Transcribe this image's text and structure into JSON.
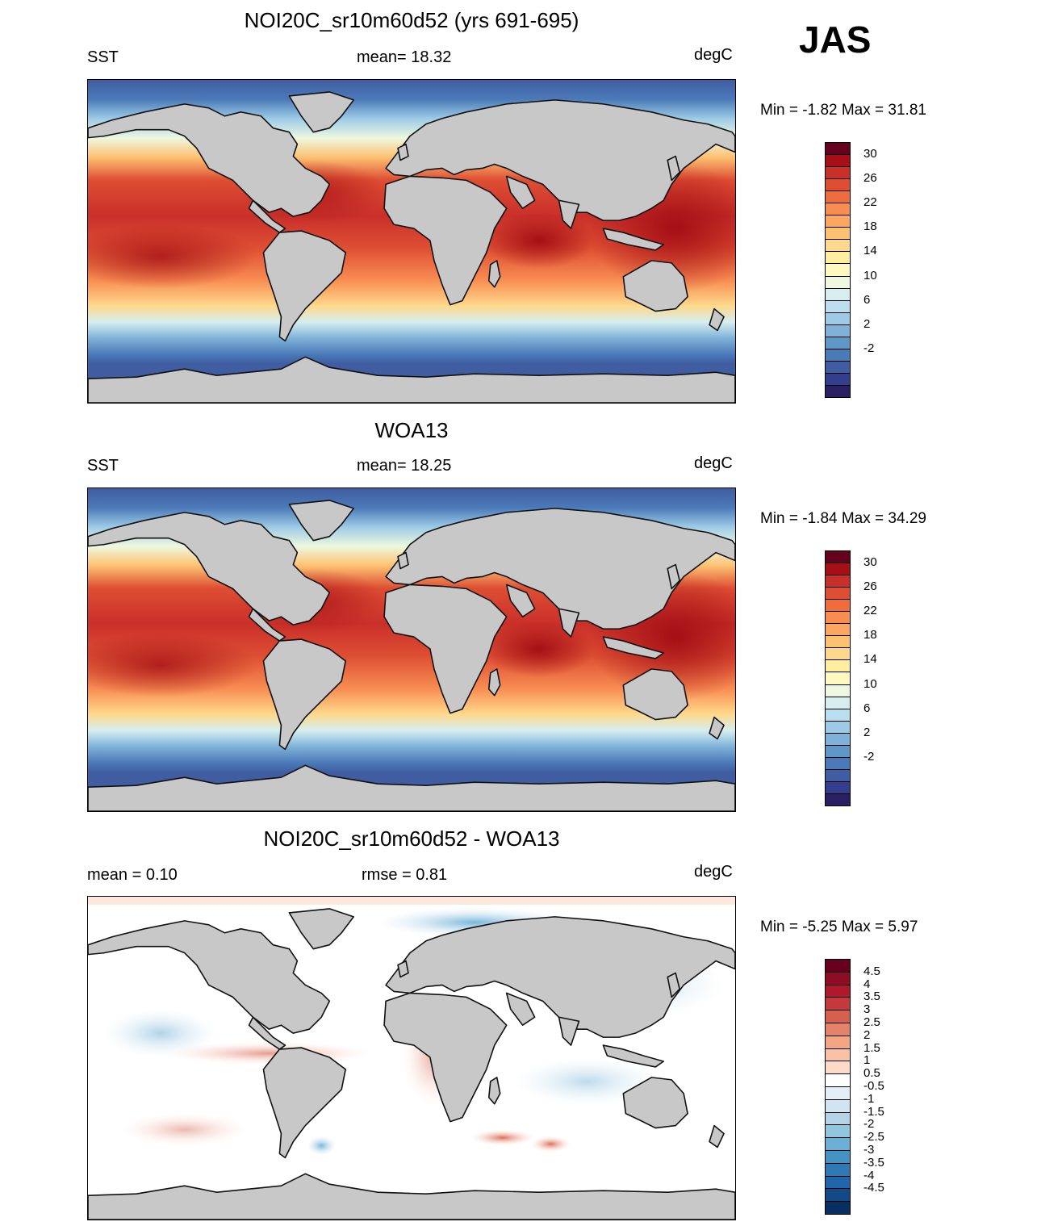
{
  "header": {
    "season": "JAS"
  },
  "panels": [
    {
      "title": "NOI20C_sr10m60d52 (yrs 691-695)",
      "left": "SST",
      "center": "mean=  18.32",
      "right": "degC",
      "minmax": "Min =  -1.82 Max =  31.81",
      "kind": "sst"
    },
    {
      "title": "WOA13",
      "left": "SST",
      "center": "mean=  18.25",
      "right": "degC",
      "minmax": "Min =  -1.84 Max =  34.29",
      "kind": "sst"
    },
    {
      "title": "NOI20C_sr10m60d52 - WOA13",
      "left": "mean =   0.10",
      "center": "rmse =   0.81",
      "right": "degC",
      "minmax": "Min =  -5.25 Max =   5.97",
      "kind": "diff"
    }
  ],
  "colorbars": {
    "sst": {
      "labels": [
        "30",
        "26",
        "22",
        "18",
        "14",
        "10",
        "6",
        "2",
        "-2"
      ],
      "colors": [
        "#67001f",
        "#a50f15",
        "#c9302a",
        "#de4e33",
        "#f06c3d",
        "#f88d52",
        "#fca65f",
        "#fdc172",
        "#fed98b",
        "#feee9f",
        "#fff8bf",
        "#eef8e0",
        "#d6eef0",
        "#b9def0",
        "#9dcbe6",
        "#7eb2d8",
        "#5f97c7",
        "#4b7ab8",
        "#3f5da0",
        "#333e8e",
        "#2a1f63"
      ]
    },
    "diff": {
      "labels": [
        "4.5",
        "4",
        "3.5",
        "3",
        "2.5",
        "2",
        "1.5",
        "1",
        "0.5",
        "-0.5",
        "-1",
        "-1.5",
        "-2",
        "-2.5",
        "-3",
        "-3.5",
        "-4",
        "-4.5"
      ],
      "colors": [
        "#67001f",
        "#8e0d24",
        "#b2182b",
        "#c4393b",
        "#d6604d",
        "#e58368",
        "#f4a582",
        "#f8c2a7",
        "#fddbc7",
        "#ffffff",
        "#e3eef6",
        "#d1e5f0",
        "#b3d4e7",
        "#92c5de",
        "#6baed6",
        "#4393c3",
        "#2f79b5",
        "#2166ac",
        "#124a86",
        "#053061"
      ]
    }
  }
}
